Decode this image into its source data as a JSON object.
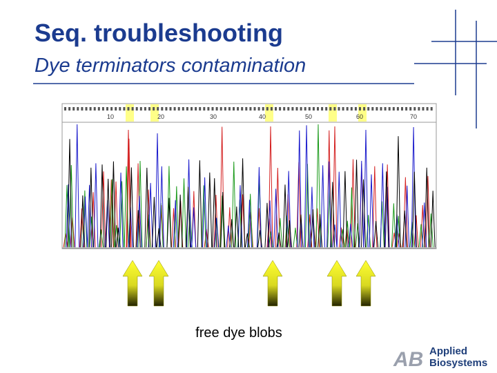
{
  "header": {
    "title": "Seq. troubleshooting",
    "subtitle": "Dye terminators contamination"
  },
  "figure": {
    "position_labels": [
      "10",
      "20",
      "30",
      "40",
      "50",
      "60",
      "70"
    ],
    "caption": "free dye blobs"
  },
  "logo": {
    "mark": "AB",
    "line1": "Applied",
    "line2": "Biosystems"
  }
}
